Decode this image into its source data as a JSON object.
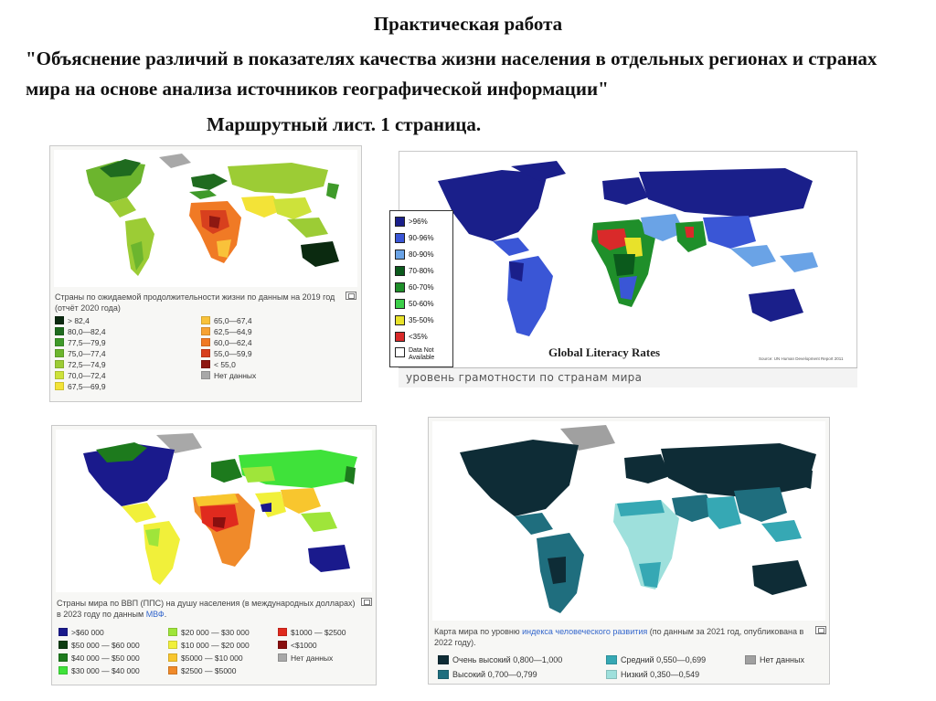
{
  "header": {
    "title": "Практическая работа",
    "subtitle": "\"Объяснение различий в показателях качества жизни населения в отдельных регионах и странах мира на основе анализа источников географической информации\"",
    "route": "Маршрутный лист. 1 страница."
  },
  "maps": {
    "life": {
      "caption": "Страны по ожидаемой продолжительности жизни по данным на 2019 год (отчёт 2020 года)",
      "legend": [
        {
          "label": "> 82,4",
          "color": "#0b2a10"
        },
        {
          "label": "80,0—82,4",
          "color": "#1f6b1f"
        },
        {
          "label": "77,5—79,9",
          "color": "#3f9a2a"
        },
        {
          "label": "75,0—77,4",
          "color": "#6cb52e"
        },
        {
          "label": "72,5—74,9",
          "color": "#9ccc35"
        },
        {
          "label": "70,0—72,4",
          "color": "#cde23a"
        },
        {
          "label": "67,5—69,9",
          "color": "#f3e337"
        },
        {
          "label": "65,0—67,4",
          "color": "#f9c23a"
        },
        {
          "label": "62,5—64,9",
          "color": "#f7a233"
        },
        {
          "label": "60,0—62,4",
          "color": "#f07a25"
        },
        {
          "label": "55,0—59,9",
          "color": "#d8401e"
        },
        {
          "label": "< 55,0",
          "color": "#8e1812"
        },
        {
          "label": "Нет данных",
          "color": "#a8a8a8"
        }
      ]
    },
    "literacy": {
      "title": "Global Literacy Rates",
      "source": "Source: UN Human Development Report 2011",
      "caption": "уровень грамотности по странам мира",
      "legend": [
        {
          "label": ">96%",
          "color": "#1a1f8a"
        },
        {
          "label": "90-96%",
          "color": "#3a56d6"
        },
        {
          "label": "80-90%",
          "color": "#6aa3e6"
        },
        {
          "label": "70-80%",
          "color": "#0b5a1c"
        },
        {
          "label": "60-70%",
          "color": "#1f8f2a"
        },
        {
          "label": "50-60%",
          "color": "#3ccf4a"
        },
        {
          "label": "35-50%",
          "color": "#e8e22a"
        },
        {
          "label": "<35%",
          "color": "#d92a2a"
        },
        {
          "label": "Data Not Available",
          "color": "#ffffff"
        }
      ]
    },
    "gdp": {
      "caption_pre": "Страны мира по ВВП (ППС) на душу населения (в международных долларах) в 2023 году по данным ",
      "caption_link": "МВФ",
      "caption_post": ".",
      "legend": [
        {
          "label": ">$60 000",
          "color": "#1a1a8c"
        },
        {
          "label": "$50 000 — $60 000",
          "color": "#0e3d12"
        },
        {
          "label": "$40 000 — $50 000",
          "color": "#1d7a1d"
        },
        {
          "label": "$30 000 — $40 000",
          "color": "#3fe23a"
        },
        {
          "label": "$20 000 — $30 000",
          "color": "#9fe53a"
        },
        {
          "label": "$10 000 — $20 000",
          "color": "#f1f03a"
        },
        {
          "label": "$5000 — $10 000",
          "color": "#f8c62e"
        },
        {
          "label": "$2500 — $5000",
          "color": "#f08a2a"
        },
        {
          "label": "$1000 — $2500",
          "color": "#e02a1e"
        },
        {
          "label": "<$1000",
          "color": "#8a0f0f"
        },
        {
          "label": "Нет данных",
          "color": "#a8a8a8"
        }
      ]
    },
    "hdi": {
      "caption_pre": "Карта мира по уровню ",
      "caption_link": "индекса человеческого развития",
      "caption_post": " (по данным за 2021 год, опубликована в 2022 году).",
      "legend": [
        {
          "label": "Очень высокий 0,800—1,000",
          "color": "#0e2c36"
        },
        {
          "label": "Высокий 0,700—0,799",
          "color": "#1f6e7e"
        },
        {
          "label": "Средний 0,550—0,699",
          "color": "#36a8b4"
        },
        {
          "label": "Низкий 0,350—0,549",
          "color": "#9ee0dc"
        },
        {
          "label": "Нет данных",
          "color": "#a0a0a0"
        }
      ]
    }
  }
}
